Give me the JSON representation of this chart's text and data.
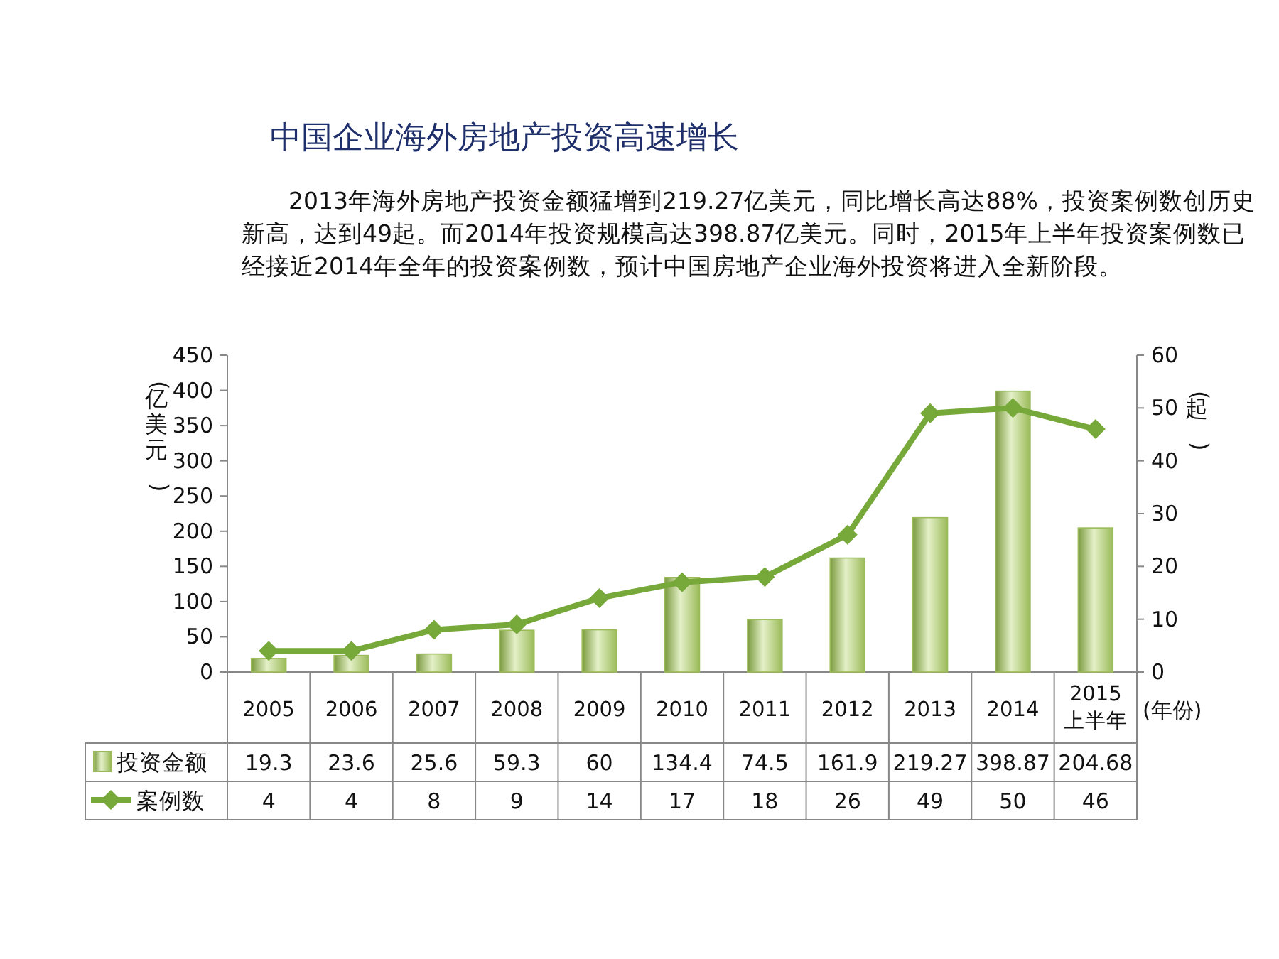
{
  "chart_data": {
    "type": "bar",
    "title": "中国企业海外房地产投资高速增长",
    "subtitle": "2013年海外房地产投资金额猛增到219.27亿美元，同比增长高达88%，投资案例数创历史新高，达到49起。而2014年投资规模高达398.87亿美元。同时，2015年上半年投资案例数已经接近2014年全年的投资案例数，预计中国房地产企业海外投资将进入全新阶段。",
    "categories": [
      "2005",
      "2006",
      "2007",
      "2008",
      "2009",
      "2010",
      "2011",
      "2012",
      "2013",
      "2014",
      "2015上半年"
    ],
    "xlabel": "(年份)",
    "ylabel": "(亿美元)",
    "y2label": "(起)",
    "series": [
      {
        "name": "投资金额",
        "color": "#9bbb59",
        "values": [
          19.3,
          23.6,
          25.6,
          59.3,
          60,
          134.4,
          74.5,
          161.9,
          219.27,
          398.87,
          204.68
        ]
      },
      {
        "name": "案例数",
        "type": "line",
        "axis": "y2",
        "color": "#77a83a",
        "marker": "diamond",
        "values": [
          4,
          4,
          8,
          9,
          14,
          17,
          18,
          26,
          49,
          50,
          46
        ]
      }
    ],
    "ylim": [
      0,
      450
    ],
    "yticks": [
      0,
      50,
      100,
      150,
      200,
      250,
      300,
      350,
      400,
      450
    ],
    "y2lim": [
      0,
      60
    ],
    "y2ticks": [
      0,
      10,
      20,
      30,
      40,
      50,
      60
    ],
    "data_labels": true,
    "legend": "bottom left",
    "grid": false
  }
}
